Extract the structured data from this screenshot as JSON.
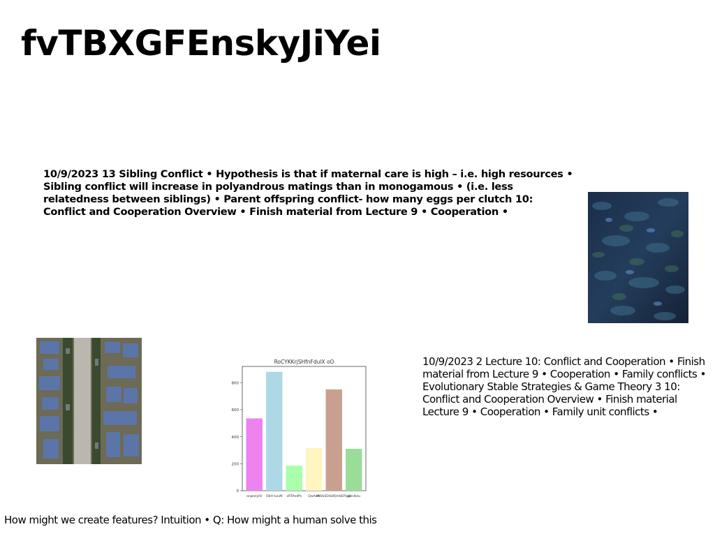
{
  "page": {
    "title": "fvTBXGFEnskyJiYei"
  },
  "text_blocks": {
    "bold_excerpt": "10/9/2023 13 Sibling Conflict • Hypothesis is that if maternal care is high – i.e. high resources • Sibling conflict will increase in polyandrous matings than in monogamous • (i.e. less relatedness between siblings) • Parent offspring conflict- how many eggs per clutch 10: Conflict and Cooperation Overview • Finish material from Lecture 9 • Cooperation •",
    "lecture_excerpt": "10/9/2023 2 Lecture 10: Conflict and Cooperation • Finish material from Lecture 9 • Cooperation • Family conflicts • Evolutionary Stable Strategies & Game Theory 3 10: Conflict and Cooperation Overview • Finish material Lecture 9 • Cooperation • Family unit conflicts •",
    "caption": "How might we create features? Intuition • Q: How might a human solve this"
  },
  "images": {
    "texture": {
      "icon": "dark-blue-texture-photo"
    },
    "aerial": {
      "icon": "aerial-city-photo"
    }
  },
  "chart_data": {
    "type": "bar",
    "title": "RoCYKKrjSHfnFdulX oO",
    "categories": [
      "argexljsfz",
      "ObH tuixN",
      "xRTAedPs",
      "QwAwo",
      "MfzbSDdLWjmbEPjqbl",
      "yjnsIkeu"
    ],
    "values": [
      535,
      880,
      185,
      315,
      750,
      310
    ],
    "colors": [
      "#ee82ee",
      "#add8e6",
      "#aaffaa",
      "#fff5c0",
      "#c9a090",
      "#99dd99"
    ],
    "yticks": [
      0,
      200,
      400,
      600,
      800
    ],
    "ylim": [
      0,
      920
    ],
    "xlabel": "",
    "ylabel": "",
    "grid": false
  }
}
